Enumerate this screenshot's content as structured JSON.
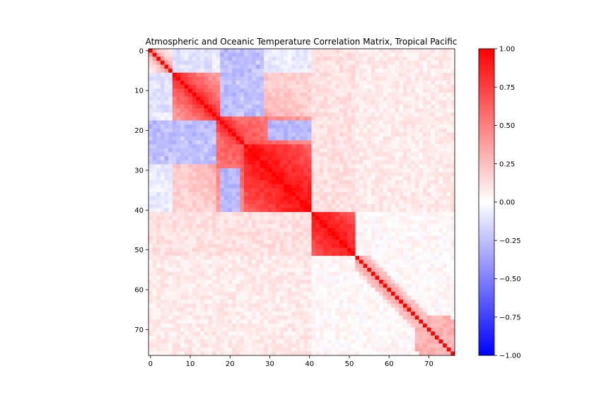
{
  "chart_data": [
    {
      "type": "heatmap",
      "title": "Atmospheric and Oceanic Temperature Correlation Matrix, Tropical Pacific",
      "xlabel": "",
      "ylabel": "",
      "n": 77,
      "x_ticks": [
        0,
        10,
        20,
        30,
        40,
        50,
        60,
        70
      ],
      "y_ticks": [
        0,
        10,
        20,
        30,
        40,
        50,
        60,
        70
      ],
      "colormap": "bwr",
      "color_low": "#0000ff",
      "color_mid": "#ffffff",
      "color_high": "#ff0000",
      "vlim": [
        -1.0,
        1.0
      ],
      "colorbar_ticks": [
        "1.00",
        "0.75",
        "0.50",
        "0.25",
        "0.00",
        "−0.25",
        "−0.50",
        "−0.75",
        "−1.00"
      ],
      "colorbar_values": [
        1.0,
        0.75,
        0.5,
        0.25,
        0.0,
        -0.25,
        -0.5,
        -0.75,
        -1.0
      ],
      "diagonal": 1.0,
      "blocks": [
        {
          "rows": [
            0,
            40
          ],
          "cols": [
            0,
            40
          ],
          "pattern": "atmospheric, near-diagonal correlations ~0.5-0.95, stronger for indices 24-40"
        },
        {
          "rows": [
            41,
            51
          ],
          "cols": [
            41,
            51
          ],
          "pattern": "oceanic, correlations ~0.7-0.95"
        },
        {
          "rows": [
            52,
            76
          ],
          "cols": [
            52,
            76
          ],
          "pattern": "weak, narrow positive band near diagonal ~0.3-0.5"
        },
        {
          "rows": [
            0,
            40
          ],
          "cols": [
            41,
            76
          ],
          "pattern": "weak positive 0.1-0.2 with noise"
        },
        {
          "rows": [
            18,
            28
          ],
          "cols": [
            0,
            16
          ],
          "pattern": "negative -0.2 to -0.35"
        },
        {
          "rows": [
            30,
            40
          ],
          "cols": [
            18,
            22
          ],
          "pattern": "negative around -0.3"
        }
      ]
    }
  ]
}
